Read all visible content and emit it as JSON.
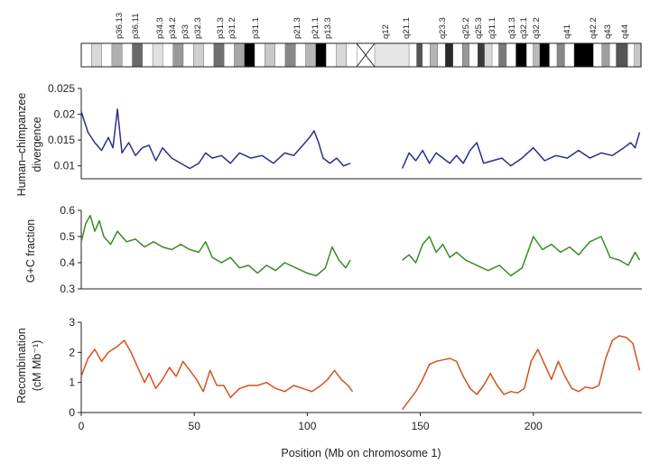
{
  "chart_data": {
    "type": "line",
    "xlabel": "Position (Mb on chromosome 1)",
    "x_ticks": [
      0,
      50,
      100,
      150,
      200
    ],
    "xlim": [
      0,
      248
    ],
    "gap_mb": [
      120,
      142
    ],
    "ideogram": {
      "p_bands": [
        "p36.13",
        "p36.11",
        "p34.3",
        "p34.2",
        "p33",
        "p32.3",
        "p31.3",
        "p31.2",
        "p31.1",
        "p21.3",
        "p21.1",
        "p13.3"
      ],
      "q_bands": [
        "q12",
        "q21.1",
        "q23.3",
        "q25.2",
        "q25.3",
        "q31.1",
        "q31.3",
        "q32.1",
        "q32.2",
        "q41",
        "q42.2",
        "q43",
        "q44"
      ]
    },
    "panels": [
      {
        "name": "divergence",
        "ylabel_lines": [
          "Human–chimpanzee",
          "divergence"
        ],
        "color": "#2b2f8c",
        "ylim": [
          0.0075,
          0.025
        ],
        "y_ticks": [
          "0.01",
          "0.015",
          "0.02",
          "0.025"
        ],
        "x": [
          0,
          3,
          6,
          9,
          12,
          14,
          16,
          18,
          21,
          24,
          27,
          30,
          33,
          36,
          40,
          44,
          48,
          52,
          55,
          58,
          62,
          66,
          70,
          75,
          80,
          85,
          90,
          94,
          98,
          101,
          103,
          105,
          107,
          110,
          113,
          116,
          119,
          142,
          145,
          148,
          151,
          154,
          157,
          160,
          163,
          166,
          169,
          172,
          175,
          178,
          182,
          186,
          190,
          195,
          200,
          205,
          210,
          215,
          220,
          225,
          230,
          235,
          240,
          243,
          245,
          247
        ],
        "y": [
          0.0205,
          0.0165,
          0.0145,
          0.013,
          0.0155,
          0.0135,
          0.021,
          0.0125,
          0.0145,
          0.012,
          0.0135,
          0.014,
          0.011,
          0.0135,
          0.0115,
          0.0105,
          0.0095,
          0.0105,
          0.0125,
          0.0115,
          0.012,
          0.0105,
          0.0125,
          0.0115,
          0.012,
          0.0105,
          0.0125,
          0.012,
          0.014,
          0.0155,
          0.0168,
          0.0145,
          0.0115,
          0.0105,
          0.0115,
          0.01,
          0.0105,
          0.0095,
          0.0125,
          0.011,
          0.013,
          0.0105,
          0.0125,
          0.0115,
          0.0105,
          0.012,
          0.0105,
          0.013,
          0.0145,
          0.0105,
          0.011,
          0.0115,
          0.01,
          0.0115,
          0.0135,
          0.011,
          0.012,
          0.0115,
          0.013,
          0.0115,
          0.0125,
          0.012,
          0.0135,
          0.0145,
          0.0135,
          0.0165
        ]
      },
      {
        "name": "gc",
        "ylabel_lines": [
          "G+C fraction"
        ],
        "color": "#3a8a26",
        "ylim": [
          0.3,
          0.6
        ],
        "y_ticks": [
          "0.3",
          "0.4",
          "0.5",
          "0.6"
        ],
        "x": [
          0,
          2,
          4,
          6,
          8,
          10,
          13,
          16,
          20,
          24,
          28,
          32,
          36,
          40,
          44,
          48,
          52,
          55,
          58,
          62,
          66,
          70,
          74,
          78,
          82,
          86,
          90,
          95,
          100,
          104,
          108,
          111,
          114,
          117,
          119,
          142,
          145,
          148,
          151,
          154,
          157,
          160,
          163,
          166,
          170,
          175,
          180,
          185,
          190,
          195,
          200,
          204,
          208,
          212,
          216,
          220,
          225,
          230,
          234,
          238,
          242,
          245,
          247
        ],
        "y": [
          0.48,
          0.55,
          0.58,
          0.52,
          0.56,
          0.5,
          0.47,
          0.52,
          0.48,
          0.49,
          0.46,
          0.48,
          0.46,
          0.45,
          0.47,
          0.45,
          0.44,
          0.48,
          0.42,
          0.4,
          0.42,
          0.38,
          0.39,
          0.36,
          0.39,
          0.37,
          0.4,
          0.38,
          0.36,
          0.35,
          0.38,
          0.46,
          0.41,
          0.38,
          0.41,
          0.41,
          0.43,
          0.4,
          0.47,
          0.5,
          0.44,
          0.47,
          0.42,
          0.44,
          0.41,
          0.39,
          0.37,
          0.39,
          0.35,
          0.38,
          0.5,
          0.45,
          0.47,
          0.44,
          0.46,
          0.43,
          0.48,
          0.5,
          0.42,
          0.41,
          0.39,
          0.44,
          0.41
        ]
      },
      {
        "name": "recombination",
        "ylabel_lines": [
          "Recombination",
          "(cM Mb⁻¹)"
        ],
        "color": "#d4521c",
        "ylim": [
          0,
          3
        ],
        "y_ticks": [
          "0",
          "1",
          "2",
          "3"
        ],
        "x": [
          0,
          3,
          6,
          9,
          12,
          16,
          19,
          22,
          25,
          28,
          30,
          33,
          36,
          39,
          42,
          45,
          48,
          51,
          54,
          57,
          60,
          63,
          66,
          70,
          74,
          78,
          82,
          86,
          90,
          94,
          98,
          102,
          106,
          109,
          112,
          115,
          118,
          120,
          142,
          145,
          148,
          151,
          154,
          157,
          160,
          163,
          166,
          169,
          172,
          175,
          178,
          181,
          184,
          187,
          190,
          193,
          196,
          199,
          202,
          205,
          208,
          211,
          214,
          217,
          220,
          223,
          226,
          229,
          232,
          235,
          238,
          241,
          244,
          247
        ],
        "y": [
          1.2,
          1.8,
          2.1,
          1.7,
          2.0,
          2.2,
          2.4,
          2.0,
          1.5,
          1.0,
          1.3,
          0.8,
          1.1,
          1.5,
          1.2,
          1.7,
          1.4,
          1.1,
          0.7,
          1.4,
          0.9,
          0.9,
          0.5,
          0.8,
          0.9,
          0.9,
          1.0,
          0.8,
          0.7,
          0.9,
          0.8,
          0.7,
          0.9,
          1.1,
          1.4,
          1.1,
          0.9,
          0.7,
          0.1,
          0.4,
          0.7,
          1.1,
          1.6,
          1.7,
          1.75,
          1.8,
          1.7,
          1.2,
          0.8,
          0.6,
          0.9,
          1.3,
          0.9,
          0.6,
          0.7,
          0.65,
          0.8,
          1.7,
          2.1,
          1.6,
          1.1,
          1.7,
          1.2,
          0.8,
          0.7,
          0.85,
          0.8,
          0.9,
          1.8,
          2.4,
          2.55,
          2.5,
          2.3,
          1.4
        ]
      }
    ]
  }
}
